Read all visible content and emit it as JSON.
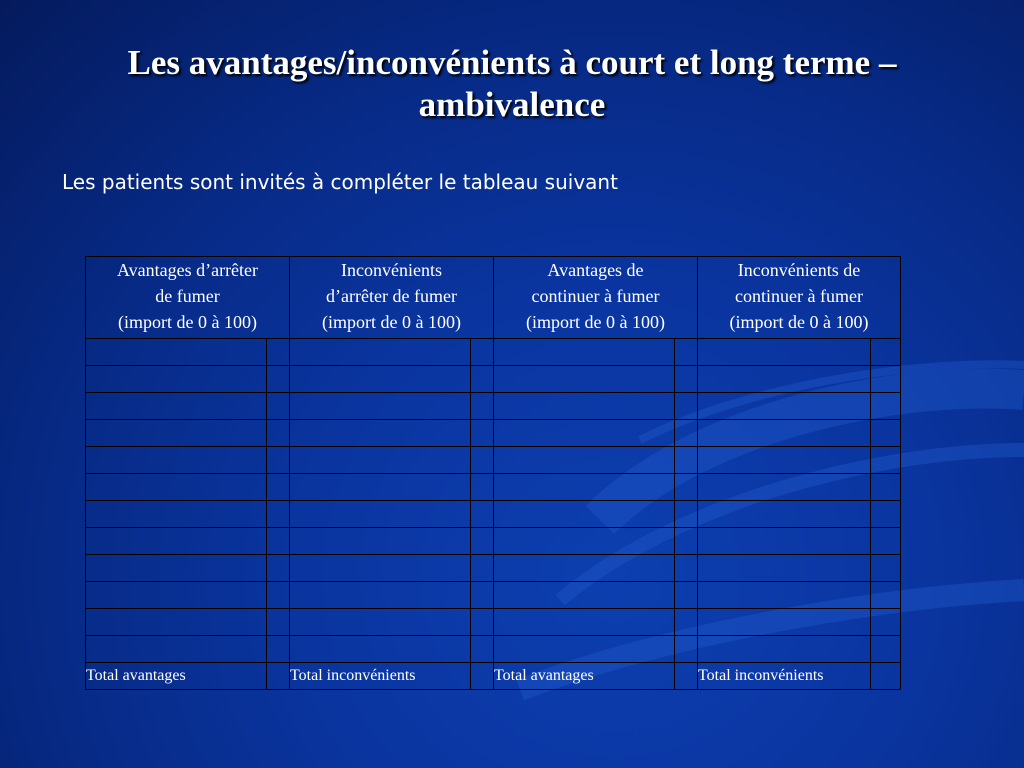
{
  "slide": {
    "title": "Les avantages/inconvénients à court et long terme – ambivalence",
    "subtitle": "Les patients sont invités à compléter le tableau suivant"
  },
  "table": {
    "headers": [
      "Avantages d’arrêter de fumer (import de 0 à 100)",
      "Inconvénients d’arrêter de fumer (import de 0 à 100)",
      "Avantages de continuer à fumer (import de 0 à 100)",
      "Inconvénients de continuer à fumer (import de 0 à 100)"
    ],
    "header_lines": [
      [
        "Avantages d’arrêter",
        "de fumer",
        "(import de 0 à 100)"
      ],
      [
        "Inconvénients",
        "d’arrêter de fumer",
        "(import de 0 à 100)"
      ],
      [
        "Avantages de",
        "continuer à fumer",
        "(import de 0 à 100)"
      ],
      [
        "Inconvénients de",
        "continuer à fumer",
        "(import de 0 à 100)"
      ]
    ],
    "empty_rows": 12,
    "totals": [
      "Total avantages",
      "Total inconvénients",
      "Total avantages",
      "Total inconvénients"
    ]
  },
  "colors": {
    "background": "#0a35a0",
    "text": "#ffffff",
    "grid_lines": "#000000"
  }
}
